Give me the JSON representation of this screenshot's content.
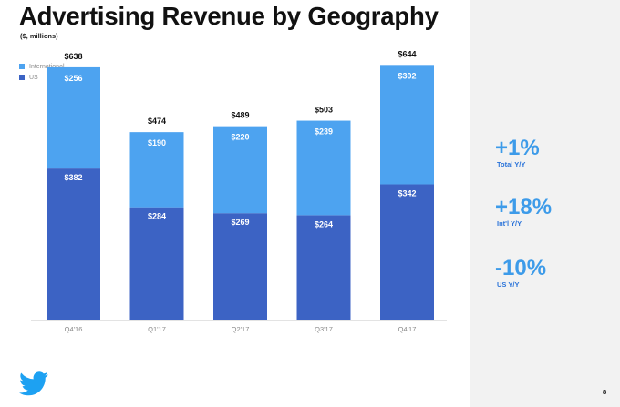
{
  "slide": {
    "title": "Advertising Revenue by Geography",
    "subtitle": "($, millions)",
    "page_number": "8"
  },
  "colors": {
    "international": "#4da3f0",
    "us": "#3c63c4",
    "stat_value": "#3d9be9",
    "stat_label": "#2a73d9",
    "right_panel_bg": "#f2f2f2"
  },
  "stats": [
    {
      "value": "+1%",
      "label": "Total Y/Y"
    },
    {
      "value": "+18%",
      "label": "Int'l Y/Y"
    },
    {
      "value": "-10%",
      "label": "US Y/Y"
    }
  ],
  "chart_data": {
    "type": "bar",
    "stacked": true,
    "title": "Advertising Revenue by Geography",
    "units": "$, millions",
    "categories": [
      "Q4'16",
      "Q1'17",
      "Q2'17",
      "Q3'17",
      "Q4'17"
    ],
    "series": [
      {
        "name": "US",
        "values": [
          382,
          284,
          269,
          264,
          342
        ],
        "labels": [
          "$382",
          "$284",
          "$269",
          "$264",
          "$342"
        ]
      },
      {
        "name": "International",
        "values": [
          256,
          190,
          220,
          239,
          302
        ],
        "labels": [
          "$256",
          "$190",
          "$220",
          "$239",
          "$302"
        ]
      }
    ],
    "totals": [
      638,
      474,
      489,
      503,
      644
    ],
    "total_labels": [
      "$638",
      "$474",
      "$489",
      "$503",
      "$644"
    ],
    "legend": [
      "International",
      "US"
    ],
    "legend_position": "top-left",
    "ylim": [
      0,
      700
    ],
    "grid": false
  }
}
